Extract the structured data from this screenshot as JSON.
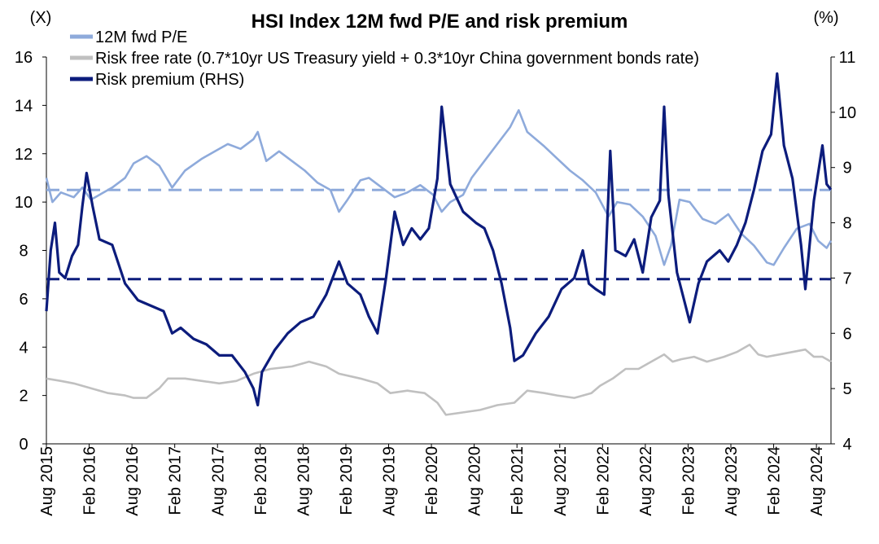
{
  "chart_data": {
    "type": "line",
    "title": "HSI Index 12M fwd P/E and risk premium",
    "left_axis_unit": "(X)",
    "right_axis_unit": "(%)",
    "x_range": [
      2015.58,
      2024.75
    ],
    "x_tick_labels": [
      "Aug 2015",
      "Feb 2016",
      "Aug 2016",
      "Feb 2017",
      "Aug 2017",
      "Feb 2018",
      "Aug 2018",
      "Feb 2019",
      "Aug 2019",
      "Feb 2020",
      "Aug 2020",
      "Feb 2021",
      "Aug 2021",
      "Feb 2022",
      "Aug 2022",
      "Feb 2023",
      "Aug 2023",
      "Feb 2024",
      "Aug 2024"
    ],
    "x_tick_values": [
      2015.58,
      2016.08,
      2016.58,
      2017.08,
      2017.58,
      2018.08,
      2018.58,
      2019.08,
      2019.58,
      2020.08,
      2020.58,
      2021.08,
      2021.58,
      2022.08,
      2022.58,
      2023.08,
      2023.58,
      2024.08,
      2024.58
    ],
    "y_left": {
      "min": 0,
      "max": 16,
      "ticks": [
        0,
        2,
        4,
        6,
        8,
        10,
        12,
        14,
        16
      ]
    },
    "y_right": {
      "min": 4,
      "max": 11,
      "ticks": [
        4,
        5,
        6,
        7,
        8,
        9,
        10,
        11
      ]
    },
    "legend_position": "top-left",
    "grid": false,
    "series": [
      {
        "name": "12M fwd P/E",
        "axis": "left",
        "color": "#8eaadb",
        "points": [
          [
            2015.58,
            11.0
          ],
          [
            2015.65,
            10.0
          ],
          [
            2015.75,
            10.4
          ],
          [
            2015.9,
            10.2
          ],
          [
            2016.0,
            10.6
          ],
          [
            2016.1,
            10.1
          ],
          [
            2016.2,
            10.3
          ],
          [
            2016.35,
            10.6
          ],
          [
            2016.5,
            11.0
          ],
          [
            2016.6,
            11.6
          ],
          [
            2016.75,
            11.9
          ],
          [
            2016.9,
            11.5
          ],
          [
            2017.0,
            10.9
          ],
          [
            2017.05,
            10.6
          ],
          [
            2017.2,
            11.3
          ],
          [
            2017.4,
            11.8
          ],
          [
            2017.55,
            12.1
          ],
          [
            2017.7,
            12.4
          ],
          [
            2017.85,
            12.2
          ],
          [
            2018.0,
            12.6
          ],
          [
            2018.05,
            12.9
          ],
          [
            2018.15,
            11.7
          ],
          [
            2018.3,
            12.1
          ],
          [
            2018.45,
            11.7
          ],
          [
            2018.6,
            11.3
          ],
          [
            2018.75,
            10.8
          ],
          [
            2018.9,
            10.5
          ],
          [
            2019.0,
            9.6
          ],
          [
            2019.1,
            10.1
          ],
          [
            2019.25,
            10.9
          ],
          [
            2019.35,
            11.0
          ],
          [
            2019.5,
            10.6
          ],
          [
            2019.65,
            10.2
          ],
          [
            2019.8,
            10.4
          ],
          [
            2019.95,
            10.7
          ],
          [
            2020.1,
            10.3
          ],
          [
            2020.2,
            9.6
          ],
          [
            2020.3,
            10.0
          ],
          [
            2020.45,
            10.3
          ],
          [
            2020.55,
            11.0
          ],
          [
            2020.7,
            11.7
          ],
          [
            2020.85,
            12.4
          ],
          [
            2021.0,
            13.1
          ],
          [
            2021.1,
            13.8
          ],
          [
            2021.2,
            12.9
          ],
          [
            2021.3,
            12.6
          ],
          [
            2021.4,
            12.3
          ],
          [
            2021.55,
            11.8
          ],
          [
            2021.7,
            11.3
          ],
          [
            2021.85,
            10.9
          ],
          [
            2022.0,
            10.4
          ],
          [
            2022.15,
            9.4
          ],
          [
            2022.25,
            10.0
          ],
          [
            2022.4,
            9.9
          ],
          [
            2022.55,
            9.4
          ],
          [
            2022.7,
            8.6
          ],
          [
            2022.8,
            7.4
          ],
          [
            2022.88,
            8.2
          ],
          [
            2022.98,
            10.1
          ],
          [
            2023.1,
            10.0
          ],
          [
            2023.25,
            9.3
          ],
          [
            2023.4,
            9.1
          ],
          [
            2023.55,
            9.5
          ],
          [
            2023.7,
            8.7
          ],
          [
            2023.85,
            8.2
          ],
          [
            2024.0,
            7.5
          ],
          [
            2024.08,
            7.4
          ],
          [
            2024.2,
            8.1
          ],
          [
            2024.35,
            8.9
          ],
          [
            2024.5,
            9.1
          ],
          [
            2024.6,
            8.4
          ],
          [
            2024.7,
            8.1
          ],
          [
            2024.75,
            8.4
          ]
        ]
      },
      {
        "name": "Risk free rate (0.7*10yr US Treasury yield + 0.3*10yr China government bonds rate)",
        "axis": "left",
        "color": "#c0c0c0",
        "points": [
          [
            2015.58,
            2.7
          ],
          [
            2015.75,
            2.6
          ],
          [
            2015.9,
            2.5
          ],
          [
            2016.1,
            2.3
          ],
          [
            2016.3,
            2.1
          ],
          [
            2016.5,
            2.0
          ],
          [
            2016.6,
            1.9
          ],
          [
            2016.75,
            1.9
          ],
          [
            2016.9,
            2.3
          ],
          [
            2017.0,
            2.7
          ],
          [
            2017.2,
            2.7
          ],
          [
            2017.4,
            2.6
          ],
          [
            2017.6,
            2.5
          ],
          [
            2017.8,
            2.6
          ],
          [
            2018.0,
            2.9
          ],
          [
            2018.2,
            3.1
          ],
          [
            2018.45,
            3.2
          ],
          [
            2018.65,
            3.4
          ],
          [
            2018.85,
            3.2
          ],
          [
            2019.0,
            2.9
          ],
          [
            2019.25,
            2.7
          ],
          [
            2019.45,
            2.5
          ],
          [
            2019.6,
            2.1
          ],
          [
            2019.8,
            2.2
          ],
          [
            2020.0,
            2.1
          ],
          [
            2020.15,
            1.7
          ],
          [
            2020.25,
            1.2
          ],
          [
            2020.45,
            1.3
          ],
          [
            2020.65,
            1.4
          ],
          [
            2020.85,
            1.6
          ],
          [
            2021.05,
            1.7
          ],
          [
            2021.2,
            2.2
          ],
          [
            2021.4,
            2.1
          ],
          [
            2021.55,
            2.0
          ],
          [
            2021.75,
            1.9
          ],
          [
            2021.95,
            2.1
          ],
          [
            2022.05,
            2.4
          ],
          [
            2022.2,
            2.7
          ],
          [
            2022.35,
            3.1
          ],
          [
            2022.5,
            3.1
          ],
          [
            2022.65,
            3.4
          ],
          [
            2022.8,
            3.7
          ],
          [
            2022.9,
            3.4
          ],
          [
            2023.0,
            3.5
          ],
          [
            2023.15,
            3.6
          ],
          [
            2023.3,
            3.4
          ],
          [
            2023.5,
            3.6
          ],
          [
            2023.65,
            3.8
          ],
          [
            2023.8,
            4.1
          ],
          [
            2023.9,
            3.7
          ],
          [
            2024.0,
            3.6
          ],
          [
            2024.15,
            3.7
          ],
          [
            2024.3,
            3.8
          ],
          [
            2024.45,
            3.9
          ],
          [
            2024.55,
            3.6
          ],
          [
            2024.65,
            3.6
          ],
          [
            2024.75,
            3.4
          ]
        ]
      },
      {
        "name": "Risk premium (RHS)",
        "axis": "right",
        "color": "#0c1c7c",
        "points": [
          [
            2015.58,
            6.4
          ],
          [
            2015.63,
            7.5
          ],
          [
            2015.68,
            8.0
          ],
          [
            2015.73,
            7.1
          ],
          [
            2015.8,
            7.0
          ],
          [
            2015.88,
            7.4
          ],
          [
            2015.95,
            7.6
          ],
          [
            2016.0,
            8.3
          ],
          [
            2016.05,
            8.9
          ],
          [
            2016.12,
            8.3
          ],
          [
            2016.2,
            7.7
          ],
          [
            2016.35,
            7.6
          ],
          [
            2016.5,
            6.9
          ],
          [
            2016.65,
            6.6
          ],
          [
            2016.8,
            6.5
          ],
          [
            2016.95,
            6.4
          ],
          [
            2017.05,
            6.0
          ],
          [
            2017.15,
            6.1
          ],
          [
            2017.3,
            5.9
          ],
          [
            2017.45,
            5.8
          ],
          [
            2017.6,
            5.6
          ],
          [
            2017.75,
            5.6
          ],
          [
            2017.9,
            5.3
          ],
          [
            2018.0,
            5.0
          ],
          [
            2018.05,
            4.7
          ],
          [
            2018.1,
            5.3
          ],
          [
            2018.25,
            5.7
          ],
          [
            2018.4,
            6.0
          ],
          [
            2018.55,
            6.2
          ],
          [
            2018.7,
            6.3
          ],
          [
            2018.85,
            6.7
          ],
          [
            2019.0,
            7.3
          ],
          [
            2019.1,
            6.9
          ],
          [
            2019.25,
            6.7
          ],
          [
            2019.35,
            6.3
          ],
          [
            2019.45,
            6.0
          ],
          [
            2019.55,
            7.0
          ],
          [
            2019.65,
            8.2
          ],
          [
            2019.75,
            7.6
          ],
          [
            2019.85,
            7.9
          ],
          [
            2019.95,
            7.7
          ],
          [
            2020.05,
            7.9
          ],
          [
            2020.15,
            8.8
          ],
          [
            2020.2,
            10.1
          ],
          [
            2020.3,
            8.7
          ],
          [
            2020.45,
            8.2
          ],
          [
            2020.6,
            8.0
          ],
          [
            2020.7,
            7.9
          ],
          [
            2020.8,
            7.5
          ],
          [
            2020.9,
            6.9
          ],
          [
            2021.0,
            6.1
          ],
          [
            2021.05,
            5.5
          ],
          [
            2021.15,
            5.6
          ],
          [
            2021.3,
            6.0
          ],
          [
            2021.45,
            6.3
          ],
          [
            2021.6,
            6.8
          ],
          [
            2021.75,
            7.0
          ],
          [
            2021.85,
            7.5
          ],
          [
            2021.92,
            6.9
          ],
          [
            2022.0,
            6.8
          ],
          [
            2022.1,
            6.7
          ],
          [
            2022.17,
            9.3
          ],
          [
            2022.23,
            7.5
          ],
          [
            2022.35,
            7.4
          ],
          [
            2022.45,
            7.7
          ],
          [
            2022.55,
            7.1
          ],
          [
            2022.65,
            8.1
          ],
          [
            2022.75,
            8.4
          ],
          [
            2022.8,
            10.1
          ],
          [
            2022.85,
            8.5
          ],
          [
            2022.95,
            7.1
          ],
          [
            2023.05,
            6.5
          ],
          [
            2023.1,
            6.2
          ],
          [
            2023.2,
            6.9
          ],
          [
            2023.3,
            7.3
          ],
          [
            2023.45,
            7.5
          ],
          [
            2023.55,
            7.3
          ],
          [
            2023.65,
            7.6
          ],
          [
            2023.75,
            8.0
          ],
          [
            2023.85,
            8.6
          ],
          [
            2023.95,
            9.3
          ],
          [
            2024.05,
            9.6
          ],
          [
            2024.12,
            10.7
          ],
          [
            2024.2,
            9.4
          ],
          [
            2024.3,
            8.8
          ],
          [
            2024.4,
            7.6
          ],
          [
            2024.45,
            6.8
          ],
          [
            2024.55,
            8.4
          ],
          [
            2024.65,
            9.4
          ],
          [
            2024.7,
            8.7
          ],
          [
            2024.75,
            8.6
          ]
        ]
      }
    ],
    "reference_lines": [
      {
        "axis": "left",
        "value": 10.5,
        "color": "#8eaadb",
        "style": "dashed"
      },
      {
        "axis": "right",
        "value": 6.98,
        "color": "#0c1c7c",
        "style": "dashed"
      }
    ]
  }
}
